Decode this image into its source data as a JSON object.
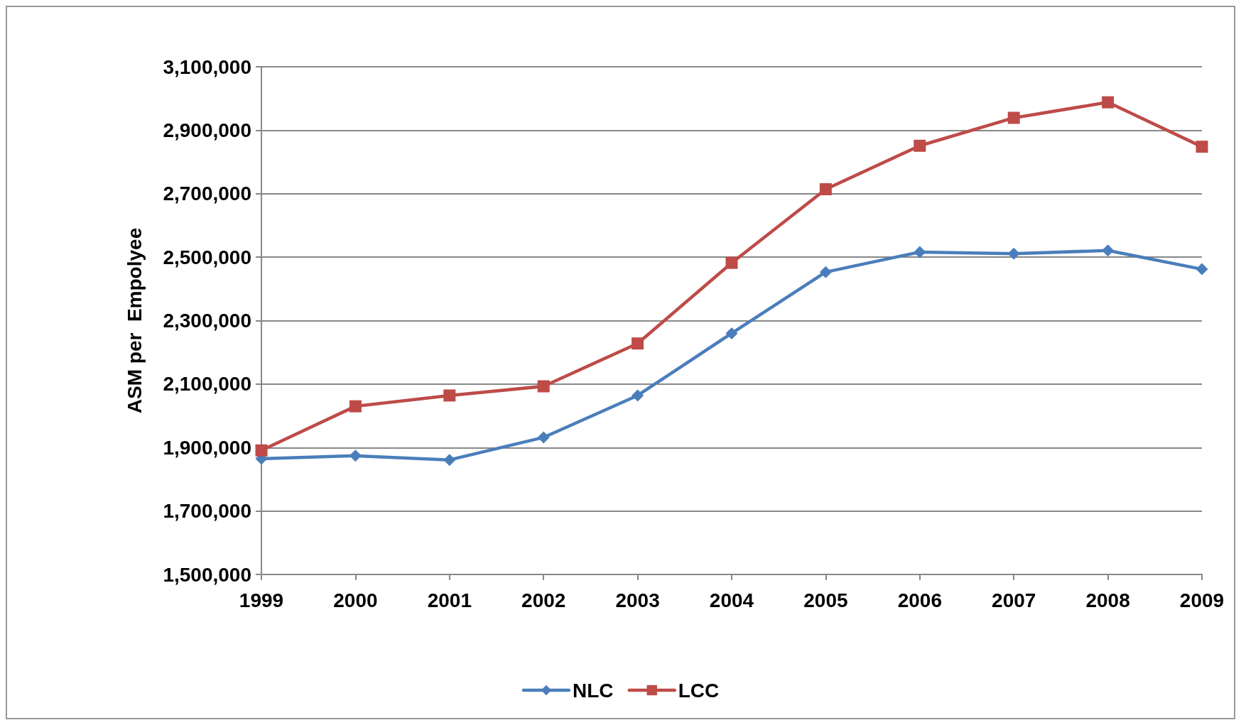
{
  "chart_data": {
    "type": "line",
    "ylabel": "ASM per  Empolyee",
    "categories": [
      "1999",
      "2000",
      "2001",
      "2002",
      "2003",
      "2004",
      "2005",
      "2006",
      "2007",
      "2008",
      "2009"
    ],
    "series": [
      {
        "name": "NLC",
        "color": "#4a7ebb",
        "marker": "diamond",
        "values": [
          1865000,
          1874000,
          1861000,
          1932000,
          2064000,
          2260000,
          2453000,
          2516000,
          2511000,
          2521000,
          2462000
        ]
      },
      {
        "name": "LCC",
        "color": "#be4b48",
        "marker": "square",
        "values": [
          1891000,
          2030000,
          2064000,
          2093000,
          2228000,
          2482000,
          2714000,
          2851000,
          2939000,
          2988000,
          2848000
        ]
      }
    ],
    "ylim": [
      1500000,
      3100000
    ],
    "yticks": [
      {
        "value": 1500000,
        "label": "1,500,000"
      },
      {
        "value": 1700000,
        "label": "1,700,000"
      },
      {
        "value": 1900000,
        "label": "1,900,000"
      },
      {
        "value": 2100000,
        "label": "2,100,000"
      },
      {
        "value": 2300000,
        "label": "2,300,000"
      },
      {
        "value": 2500000,
        "label": "2,500,000"
      },
      {
        "value": 2700000,
        "label": "2,700,000"
      },
      {
        "value": 2900000,
        "label": "2,900,000"
      },
      {
        "value": 3100000,
        "label": "3,100,000"
      }
    ],
    "grid": "y",
    "legend": "bottom",
    "line_style": "solid"
  }
}
